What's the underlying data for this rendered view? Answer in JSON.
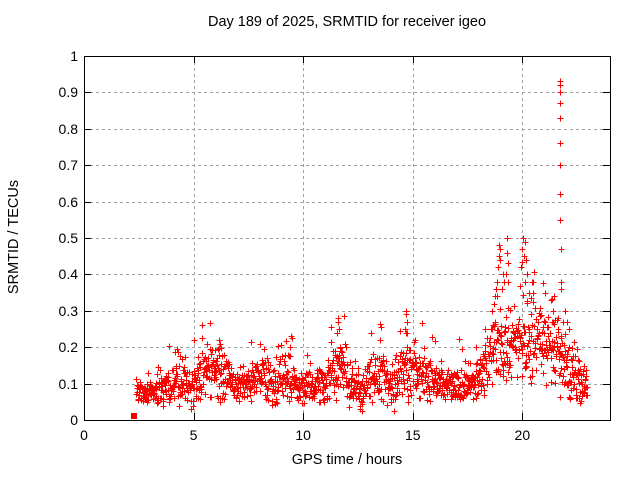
{
  "window": {
    "background": "#ffffff",
    "border_color": "#000000"
  },
  "chart_data": {
    "type": "scatter",
    "title": "Day 189 of 2025, SRMTID for receiver igeo",
    "xlabel": "GPS time / hours",
    "ylabel": "SRMTID / TECUs",
    "xlim": [
      0,
      24
    ],
    "ylim": [
      0,
      1
    ],
    "xticks": [
      0,
      5,
      10,
      15,
      20
    ],
    "yticks": [
      0,
      0.1,
      0.2,
      0.3,
      0.4,
      0.5,
      0.6,
      0.7,
      0.8,
      0.9,
      1
    ],
    "grid": {
      "visible": true,
      "style": "dashed",
      "color": "#a0a0a0"
    },
    "legend": "none",
    "marker": {
      "shape": "plus",
      "color": "#ff0000",
      "size": 7
    },
    "series": [
      {
        "name": "SRMTID",
        "points_estimated": true,
        "n_points": 1500,
        "t_range": [
          2.38,
          22.95
        ],
        "band_envelope": [
          [
            2.4,
            0.075,
            0.025
          ],
          [
            3.0,
            0.075,
            0.025
          ],
          [
            3.5,
            0.09,
            0.03
          ],
          [
            4.2,
            0.115,
            0.04
          ],
          [
            4.8,
            0.085,
            0.03
          ],
          [
            5.5,
            0.13,
            0.05
          ],
          [
            6.2,
            0.135,
            0.05
          ],
          [
            6.9,
            0.09,
            0.03
          ],
          [
            7.5,
            0.1,
            0.035
          ],
          [
            8.0,
            0.12,
            0.045
          ],
          [
            8.7,
            0.1,
            0.04
          ],
          [
            9.35,
            0.12,
            0.045
          ],
          [
            10.0,
            0.085,
            0.03
          ],
          [
            10.7,
            0.095,
            0.035
          ],
          [
            11.3,
            0.12,
            0.045
          ],
          [
            11.65,
            0.155,
            0.055
          ],
          [
            12.1,
            0.1,
            0.04
          ],
          [
            12.7,
            0.09,
            0.038
          ],
          [
            13.45,
            0.12,
            0.045
          ],
          [
            14.1,
            0.1,
            0.04
          ],
          [
            14.7,
            0.14,
            0.055
          ],
          [
            15.25,
            0.125,
            0.05
          ],
          [
            16.0,
            0.105,
            0.04
          ],
          [
            16.8,
            0.1,
            0.038
          ],
          [
            17.5,
            0.1,
            0.038
          ],
          [
            18.0,
            0.12,
            0.045
          ],
          [
            18.5,
            0.16,
            0.055
          ],
          [
            19.0,
            0.21,
            0.075
          ],
          [
            19.5,
            0.235,
            0.08
          ],
          [
            20.0,
            0.22,
            0.08
          ],
          [
            20.5,
            0.21,
            0.075
          ],
          [
            21.0,
            0.215,
            0.07
          ],
          [
            21.5,
            0.215,
            0.07
          ],
          [
            21.8,
            0.18,
            0.06
          ],
          [
            22.2,
            0.14,
            0.05
          ],
          [
            22.6,
            0.12,
            0.042
          ],
          [
            22.95,
            0.11,
            0.035
          ]
        ],
        "outliers": [
          [
            21.72,
            0.93
          ],
          [
            21.74,
            0.92
          ],
          [
            21.7,
            0.9
          ],
          [
            21.73,
            0.9
          ],
          [
            21.72,
            0.87
          ],
          [
            21.73,
            0.83
          ],
          [
            21.71,
            0.76
          ],
          [
            21.74,
            0.7
          ],
          [
            21.72,
            0.62
          ],
          [
            21.7,
            0.55
          ],
          [
            21.76,
            0.47
          ],
          [
            21.76,
            0.38
          ],
          [
            21.77,
            0.36
          ],
          [
            18.95,
            0.48
          ],
          [
            18.97,
            0.47
          ],
          [
            18.93,
            0.45
          ],
          [
            19.0,
            0.44
          ],
          [
            18.9,
            0.42
          ],
          [
            18.85,
            0.38
          ],
          [
            18.8,
            0.36
          ],
          [
            18.75,
            0.34
          ],
          [
            19.28,
            0.5
          ],
          [
            19.3,
            0.46
          ],
          [
            19.33,
            0.43
          ],
          [
            19.25,
            0.4
          ],
          [
            19.36,
            0.38
          ],
          [
            20.05,
            0.5
          ],
          [
            20.1,
            0.49
          ],
          [
            20.0,
            0.47
          ],
          [
            20.08,
            0.45
          ],
          [
            20.15,
            0.44
          ],
          [
            19.95,
            0.42
          ],
          [
            20.2,
            0.4
          ],
          [
            20.12,
            0.38
          ],
          [
            20.3,
            0.35
          ],
          [
            20.45,
            0.38
          ],
          [
            20.5,
            0.35
          ],
          [
            18.6,
            0.3
          ],
          [
            18.7,
            0.32
          ],
          [
            18.85,
            0.34
          ],
          [
            19.05,
            0.36
          ],
          [
            19.1,
            0.4
          ],
          [
            19.15,
            0.38
          ],
          [
            21.05,
            0.35
          ],
          [
            21.3,
            0.33
          ],
          [
            21.4,
            0.3
          ],
          [
            21.45,
            0.34
          ],
          [
            21.95,
            0.3
          ],
          [
            22.05,
            0.27
          ],
          [
            22.15,
            0.25
          ],
          [
            14.68,
            0.3
          ],
          [
            14.7,
            0.29
          ],
          [
            14.72,
            0.27
          ],
          [
            14.65,
            0.25
          ],
          [
            14.75,
            0.24
          ],
          [
            11.58,
            0.28
          ],
          [
            11.6,
            0.27
          ],
          [
            11.62,
            0.25
          ],
          [
            11.55,
            0.24
          ],
          [
            5.6,
            0.21
          ],
          [
            6.15,
            0.22
          ],
          [
            6.2,
            0.21
          ],
          [
            8.02,
            0.21
          ],
          [
            9.4,
            0.2
          ],
          [
            13.5,
            0.22
          ],
          [
            15.1,
            0.22
          ],
          [
            17.9,
            0.2
          ],
          [
            18.3,
            0.25
          ],
          [
            4.86,
            0.03
          ],
          [
            12.7,
            0.025
          ],
          [
            14.16,
            0.025
          ],
          [
            21.7,
            0.063
          ],
          [
            22.9,
            0.068
          ]
        ],
        "start_square_point": [
          2.3,
          0.01
        ]
      }
    ]
  }
}
